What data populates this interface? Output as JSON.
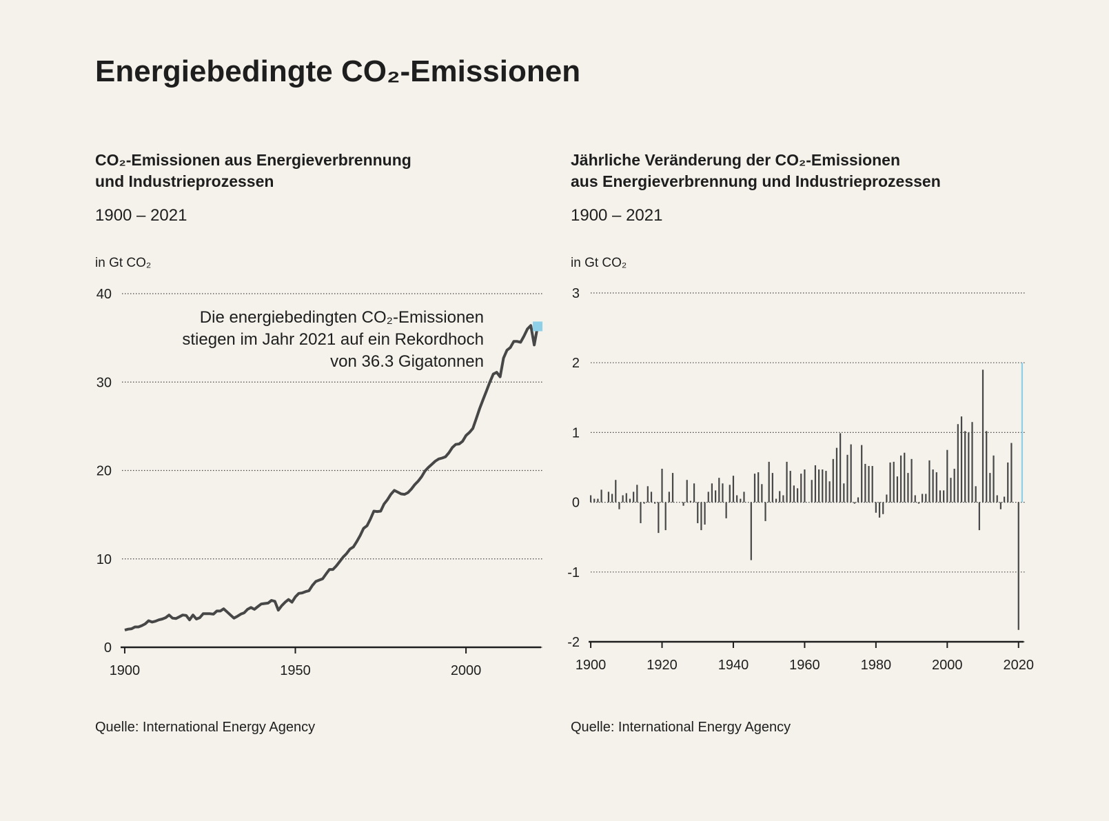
{
  "title": "Energiebedingte CO₂-Emissionen",
  "chart_data": [
    {
      "type": "line",
      "title": [
        "CO₂-Emissionen aus Energieverbrennung",
        "und Industrieprozessen"
      ],
      "subtitle": "1900 – 2021",
      "y_label": "in Gt CO₂",
      "annotation": [
        "Die energiebedingten CO₂-Emissionen",
        "stiegen im Jahr 2021 auf ein Rekordhoch",
        "von 36.3 Gigatonnen"
      ],
      "source": "Quelle: International Energy Agency",
      "color": "#474747",
      "marker_color": "#8dd0e8",
      "xlim": [
        1899,
        2022
      ],
      "ylim": [
        0,
        40
      ],
      "xticks": [
        1900,
        1950,
        2000
      ],
      "yticks": [
        0,
        10,
        20,
        30,
        40
      ],
      "grid": true,
      "x": [
        1900,
        1901,
        1902,
        1903,
        1904,
        1905,
        1906,
        1907,
        1908,
        1909,
        1910,
        1911,
        1912,
        1913,
        1914,
        1915,
        1916,
        1917,
        1918,
        1919,
        1920,
        1921,
        1922,
        1923,
        1924,
        1925,
        1926,
        1927,
        1928,
        1929,
        1930,
        1931,
        1932,
        1933,
        1934,
        1935,
        1936,
        1937,
        1938,
        1939,
        1940,
        1941,
        1942,
        1943,
        1944,
        1945,
        1946,
        1947,
        1948,
        1949,
        1950,
        1951,
        1952,
        1953,
        1954,
        1955,
        1956,
        1957,
        1958,
        1959,
        1960,
        1961,
        1962,
        1963,
        1964,
        1965,
        1966,
        1967,
        1968,
        1969,
        1970,
        1971,
        1972,
        1973,
        1974,
        1975,
        1976,
        1977,
        1978,
        1979,
        1980,
        1981,
        1982,
        1983,
        1984,
        1985,
        1986,
        1987,
        1988,
        1989,
        1990,
        1991,
        1992,
        1993,
        1994,
        1995,
        1996,
        1997,
        1998,
        1999,
        2000,
        2001,
        2002,
        2003,
        2004,
        2005,
        2006,
        2007,
        2008,
        2009,
        2010,
        2011,
        2012,
        2013,
        2014,
        2015,
        2016,
        2017,
        2018,
        2019,
        2020,
        2021
      ],
      "values": [
        1.95,
        2.05,
        2.1,
        2.3,
        2.3,
        2.45,
        2.65,
        3.0,
        2.85,
        2.95,
        3.1,
        3.2,
        3.35,
        3.65,
        3.3,
        3.25,
        3.45,
        3.65,
        3.6,
        3.1,
        3.65,
        3.2,
        3.35,
        3.8,
        3.8,
        3.8,
        3.75,
        4.1,
        4.1,
        4.35,
        4.0,
        3.65,
        3.3,
        3.5,
        3.75,
        3.9,
        4.3,
        4.5,
        4.3,
        4.6,
        4.9,
        4.95,
        5.0,
        5.3,
        5.2,
        4.2,
        4.7,
        5.1,
        5.4,
        5.1,
        5.7,
        6.1,
        6.15,
        6.3,
        6.4,
        7.0,
        7.45,
        7.6,
        7.75,
        8.3,
        8.8,
        8.8,
        9.2,
        9.7,
        10.2,
        10.6,
        11.1,
        11.35,
        11.95,
        12.65,
        13.45,
        13.75,
        14.5,
        15.4,
        15.35,
        15.4,
        16.2,
        16.7,
        17.3,
        17.75,
        17.55,
        17.35,
        17.3,
        17.5,
        17.9,
        18.4,
        18.8,
        19.3,
        19.95,
        20.35,
        20.7,
        21.05,
        21.3,
        21.4,
        21.55,
        22.0,
        22.6,
        22.95,
        23.0,
        23.3,
        23.95,
        24.3,
        24.75,
        25.85,
        27.0,
        28.0,
        29.0,
        30.0,
        30.9,
        31.1,
        30.6,
        32.7,
        33.6,
        33.9,
        34.6,
        34.6,
        34.5,
        35.2,
        36.0,
        36.4,
        34.2,
        36.3
      ]
    },
    {
      "type": "bar",
      "title": [
        "Jährliche Veränderung der CO₂-Emissionen",
        "aus Energieverbrennung und Industrieprozessen"
      ],
      "subtitle": "1900 – 2021",
      "y_label": "in Gt CO₂",
      "source": "Quelle: International Energy Agency",
      "color": "#474747",
      "highlight_color": "#8dd0e8",
      "xlim": [
        1899.6,
        2021.4
      ],
      "ylim": [
        -2,
        3
      ],
      "xticks": [
        1900,
        1920,
        1940,
        1960,
        1980,
        2000,
        2020
      ],
      "yticks": [
        -2,
        -1,
        0,
        1,
        2,
        3
      ],
      "grid": true,
      "x": [
        1900,
        1901,
        1902,
        1903,
        1904,
        1905,
        1906,
        1907,
        1908,
        1909,
        1910,
        1911,
        1912,
        1913,
        1914,
        1915,
        1916,
        1917,
        1918,
        1919,
        1920,
        1921,
        1922,
        1923,
        1924,
        1925,
        1926,
        1927,
        1928,
        1929,
        1930,
        1931,
        1932,
        1933,
        1934,
        1935,
        1936,
        1937,
        1938,
        1939,
        1940,
        1941,
        1942,
        1943,
        1944,
        1945,
        1946,
        1947,
        1948,
        1949,
        1950,
        1951,
        1952,
        1953,
        1954,
        1955,
        1956,
        1957,
        1958,
        1959,
        1960,
        1961,
        1962,
        1963,
        1964,
        1965,
        1966,
        1967,
        1968,
        1969,
        1970,
        1971,
        1972,
        1973,
        1974,
        1975,
        1976,
        1977,
        1978,
        1979,
        1980,
        1981,
        1982,
        1983,
        1984,
        1985,
        1986,
        1987,
        1988,
        1989,
        1990,
        1991,
        1992,
        1993,
        1994,
        1995,
        1996,
        1997,
        1998,
        1999,
        2000,
        2001,
        2002,
        2003,
        2004,
        2005,
        2006,
        2007,
        2008,
        2009,
        2010,
        2011,
        2012,
        2013,
        2014,
        2015,
        2016,
        2017,
        2018,
        2019,
        2020,
        2021
      ],
      "values": [
        0.1,
        0.05,
        0.05,
        0.18,
        0.0,
        0.15,
        0.12,
        0.32,
        -0.1,
        0.1,
        0.13,
        0.05,
        0.15,
        0.25,
        -0.3,
        -0.02,
        0.23,
        0.15,
        -0.02,
        -0.44,
        0.48,
        -0.4,
        0.15,
        0.42,
        0.0,
        0.0,
        -0.05,
        0.32,
        0.02,
        0.27,
        -0.3,
        -0.4,
        -0.32,
        0.15,
        0.27,
        0.17,
        0.35,
        0.27,
        -0.23,
        0.25,
        0.38,
        0.1,
        0.05,
        0.15,
        0.0,
        -0.83,
        0.41,
        0.43,
        0.26,
        -0.27,
        0.58,
        0.42,
        0.05,
        0.16,
        0.1,
        0.58,
        0.45,
        0.24,
        0.2,
        0.41,
        0.47,
        0.0,
        0.32,
        0.53,
        0.47,
        0.47,
        0.45,
        0.3,
        0.62,
        0.78,
        0.99,
        0.27,
        0.68,
        0.83,
        -0.02,
        0.07,
        0.82,
        0.55,
        0.52,
        0.52,
        -0.15,
        -0.22,
        -0.17,
        0.11,
        0.57,
        0.58,
        0.37,
        0.67,
        0.71,
        0.42,
        0.62,
        0.1,
        -0.02,
        0.12,
        0.12,
        0.6,
        0.47,
        0.43,
        0.17,
        0.17,
        0.75,
        0.35,
        0.48,
        1.12,
        1.23,
        1.02,
        1.0,
        1.15,
        0.23,
        -0.4,
        1.9,
        1.02,
        0.42,
        0.67,
        0.1,
        -0.1,
        0.08,
        0.57,
        0.85,
        0.0,
        -1.83,
        2.0
      ]
    }
  ]
}
